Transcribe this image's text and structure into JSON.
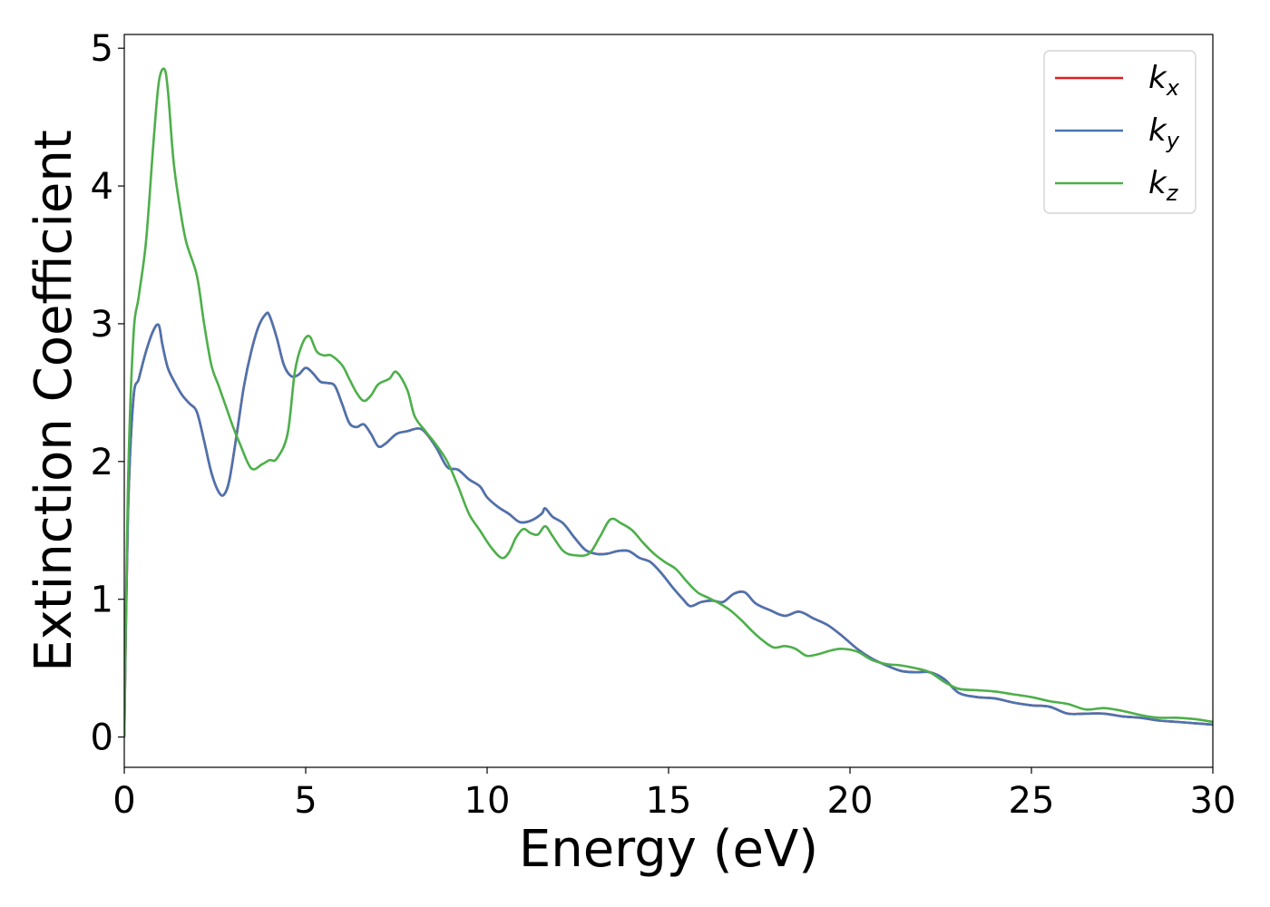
{
  "chart_data": {
    "type": "line",
    "xlabel": "Energy (eV)",
    "ylabel": "Extinction Coefficient",
    "xlim": [
      0,
      30
    ],
    "ylim": [
      -0.22,
      5.1
    ],
    "xticks": [
      0,
      5,
      10,
      15,
      20,
      25,
      30
    ],
    "yticks": [
      0,
      1,
      2,
      3,
      4,
      5
    ],
    "grid": false,
    "legend_position": "top-right",
    "series": [
      {
        "name": "k_x",
        "legend_base": "k",
        "legend_sub": "x",
        "color": "#e41a1c",
        "x": [
          0,
          0.1,
          0.25,
          0.4,
          0.6,
          0.8,
          0.95,
          1.05,
          1.2,
          1.4,
          1.6,
          1.8,
          2.0,
          2.2,
          2.4,
          2.6,
          2.75,
          2.9,
          3.1,
          3.3,
          3.5,
          3.7,
          3.9,
          4.0,
          4.2,
          4.4,
          4.6,
          4.8,
          5.0,
          5.2,
          5.4,
          5.6,
          5.8,
          6.0,
          6.2,
          6.4,
          6.6,
          6.8,
          7.0,
          7.2,
          7.5,
          7.8,
          8.1,
          8.3,
          8.6,
          8.9,
          9.2,
          9.5,
          9.8,
          10.0,
          10.3,
          10.6,
          10.9,
          11.2,
          11.5,
          11.6,
          11.8,
          12.1,
          12.4,
          12.7,
          13.0,
          13.3,
          13.6,
          13.9,
          14.2,
          14.5,
          14.8,
          15.1,
          15.4,
          15.6,
          15.9,
          16.2,
          16.5,
          16.8,
          17.1,
          17.4,
          17.8,
          18.2,
          18.6,
          19.0,
          19.4,
          19.8,
          20.2,
          20.6,
          21.0,
          21.4,
          21.8,
          22.2,
          22.6,
          23.0,
          23.5,
          24.0,
          24.5,
          25.0,
          25.5,
          26.0,
          26.5,
          27.0,
          27.5,
          28.0,
          28.5,
          29.0,
          29.5,
          30.0
        ],
        "values": [
          0,
          1.6,
          2.45,
          2.6,
          2.8,
          2.95,
          2.99,
          2.85,
          2.68,
          2.57,
          2.48,
          2.42,
          2.36,
          2.15,
          1.92,
          1.78,
          1.76,
          1.87,
          2.2,
          2.55,
          2.8,
          2.98,
          3.07,
          3.06,
          2.9,
          2.7,
          2.62,
          2.63,
          2.68,
          2.64,
          2.58,
          2.57,
          2.55,
          2.42,
          2.28,
          2.25,
          2.27,
          2.2,
          2.11,
          2.13,
          2.2,
          2.22,
          2.24,
          2.21,
          2.1,
          1.96,
          1.94,
          1.87,
          1.82,
          1.74,
          1.67,
          1.62,
          1.56,
          1.57,
          1.62,
          1.66,
          1.6,
          1.55,
          1.45,
          1.36,
          1.33,
          1.33,
          1.35,
          1.35,
          1.3,
          1.27,
          1.19,
          1.09,
          1.0,
          0.95,
          0.98,
          0.99,
          0.98,
          1.04,
          1.05,
          0.97,
          0.92,
          0.88,
          0.91,
          0.86,
          0.81,
          0.73,
          0.64,
          0.57,
          0.52,
          0.48,
          0.47,
          0.47,
          0.42,
          0.32,
          0.29,
          0.28,
          0.25,
          0.23,
          0.22,
          0.17,
          0.17,
          0.17,
          0.15,
          0.14,
          0.12,
          0.11,
          0.1,
          0.09
        ]
      },
      {
        "name": "k_y",
        "legend_base": "k",
        "legend_sub": "y",
        "color": "#4a74b0",
        "x": [
          0,
          0.1,
          0.25,
          0.4,
          0.6,
          0.8,
          0.95,
          1.05,
          1.2,
          1.4,
          1.6,
          1.8,
          2.0,
          2.2,
          2.4,
          2.6,
          2.75,
          2.9,
          3.1,
          3.3,
          3.5,
          3.7,
          3.9,
          4.0,
          4.2,
          4.4,
          4.6,
          4.8,
          5.0,
          5.2,
          5.4,
          5.6,
          5.8,
          6.0,
          6.2,
          6.4,
          6.6,
          6.8,
          7.0,
          7.2,
          7.5,
          7.8,
          8.1,
          8.3,
          8.6,
          8.9,
          9.2,
          9.5,
          9.8,
          10.0,
          10.3,
          10.6,
          10.9,
          11.2,
          11.5,
          11.6,
          11.8,
          12.1,
          12.4,
          12.7,
          13.0,
          13.3,
          13.6,
          13.9,
          14.2,
          14.5,
          14.8,
          15.1,
          15.4,
          15.6,
          15.9,
          16.2,
          16.5,
          16.8,
          17.1,
          17.4,
          17.8,
          18.2,
          18.6,
          19.0,
          19.4,
          19.8,
          20.2,
          20.6,
          21.0,
          21.4,
          21.8,
          22.2,
          22.6,
          23.0,
          23.5,
          24.0,
          24.5,
          25.0,
          25.5,
          26.0,
          26.5,
          27.0,
          27.5,
          28.0,
          28.5,
          29.0,
          29.5,
          30.0
        ],
        "values": [
          0,
          1.6,
          2.45,
          2.6,
          2.8,
          2.95,
          2.99,
          2.85,
          2.68,
          2.57,
          2.48,
          2.42,
          2.36,
          2.15,
          1.92,
          1.78,
          1.76,
          1.87,
          2.2,
          2.55,
          2.8,
          2.98,
          3.07,
          3.06,
          2.9,
          2.7,
          2.62,
          2.63,
          2.68,
          2.64,
          2.58,
          2.57,
          2.55,
          2.42,
          2.28,
          2.25,
          2.27,
          2.2,
          2.11,
          2.13,
          2.2,
          2.22,
          2.24,
          2.21,
          2.1,
          1.96,
          1.94,
          1.87,
          1.82,
          1.74,
          1.67,
          1.62,
          1.56,
          1.57,
          1.62,
          1.66,
          1.6,
          1.55,
          1.45,
          1.36,
          1.33,
          1.33,
          1.35,
          1.35,
          1.3,
          1.27,
          1.19,
          1.09,
          1.0,
          0.95,
          0.98,
          0.99,
          0.98,
          1.04,
          1.05,
          0.97,
          0.92,
          0.88,
          0.91,
          0.86,
          0.81,
          0.73,
          0.64,
          0.57,
          0.52,
          0.48,
          0.47,
          0.47,
          0.42,
          0.32,
          0.29,
          0.28,
          0.25,
          0.23,
          0.22,
          0.17,
          0.17,
          0.17,
          0.15,
          0.14,
          0.12,
          0.11,
          0.1,
          0.09
        ]
      },
      {
        "name": "k_z",
        "legend_base": "k",
        "legend_sub": "z",
        "color": "#4daf4a",
        "x": [
          0,
          0.1,
          0.25,
          0.4,
          0.6,
          0.8,
          0.95,
          1.1,
          1.2,
          1.35,
          1.5,
          1.7,
          2.0,
          2.2,
          2.4,
          2.6,
          2.8,
          3.0,
          3.2,
          3.5,
          3.8,
          4.0,
          4.2,
          4.5,
          4.7,
          4.9,
          5.1,
          5.3,
          5.5,
          5.7,
          6.0,
          6.2,
          6.4,
          6.6,
          6.8,
          7.0,
          7.3,
          7.5,
          7.8,
          8.0,
          8.3,
          8.6,
          8.9,
          9.2,
          9.5,
          9.8,
          10.1,
          10.4,
          10.6,
          10.8,
          11.0,
          11.2,
          11.4,
          11.6,
          11.8,
          12.1,
          12.4,
          12.8,
          13.1,
          13.4,
          13.7,
          14.0,
          14.3,
          14.6,
          14.9,
          15.2,
          15.5,
          15.8,
          16.1,
          16.4,
          16.7,
          17.0,
          17.3,
          17.6,
          17.9,
          18.2,
          18.5,
          18.8,
          19.1,
          19.5,
          19.8,
          20.2,
          20.6,
          21.0,
          21.4,
          21.8,
          22.2,
          22.6,
          23.0,
          23.5,
          24.0,
          24.5,
          25.0,
          25.5,
          26.0,
          26.5,
          27.0,
          27.5,
          28.0,
          28.5,
          29.0,
          29.5,
          30.0
        ],
        "values": [
          0,
          1.8,
          2.9,
          3.2,
          3.6,
          4.3,
          4.75,
          4.85,
          4.7,
          4.2,
          3.9,
          3.6,
          3.35,
          3.0,
          2.7,
          2.55,
          2.4,
          2.25,
          2.12,
          1.95,
          1.98,
          2.01,
          2.02,
          2.2,
          2.65,
          2.85,
          2.91,
          2.8,
          2.77,
          2.77,
          2.7,
          2.6,
          2.5,
          2.44,
          2.48,
          2.56,
          2.6,
          2.65,
          2.52,
          2.33,
          2.22,
          2.12,
          2.0,
          1.82,
          1.62,
          1.5,
          1.38,
          1.3,
          1.34,
          1.45,
          1.51,
          1.48,
          1.47,
          1.53,
          1.46,
          1.35,
          1.32,
          1.33,
          1.45,
          1.58,
          1.55,
          1.5,
          1.41,
          1.33,
          1.27,
          1.22,
          1.13,
          1.05,
          1.01,
          0.97,
          0.92,
          0.85,
          0.77,
          0.7,
          0.65,
          0.66,
          0.64,
          0.59,
          0.6,
          0.63,
          0.64,
          0.62,
          0.56,
          0.53,
          0.52,
          0.5,
          0.47,
          0.4,
          0.35,
          0.34,
          0.33,
          0.31,
          0.29,
          0.26,
          0.24,
          0.2,
          0.21,
          0.19,
          0.16,
          0.14,
          0.14,
          0.13,
          0.11
        ]
      }
    ]
  }
}
